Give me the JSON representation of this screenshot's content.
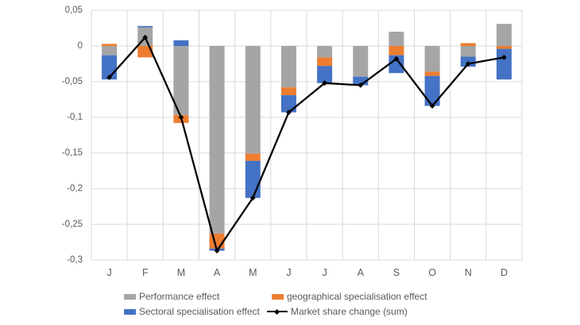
{
  "chart_data": {
    "type": "bar",
    "subtype": "stacked-column-with-line-overlay",
    "title": "",
    "xlabel": "",
    "ylabel": "",
    "categories": [
      "J",
      "F",
      "M",
      "A",
      "M",
      "J",
      "J",
      "A",
      "S",
      "O",
      "N",
      "D"
    ],
    "series": [
      {
        "name": "Performance effect",
        "type": "bar",
        "color": "#A5A5A5",
        "values": [
          -0.013,
          0.026,
          -0.097,
          -0.263,
          -0.151,
          -0.058,
          -0.016,
          -0.043,
          0.02,
          -0.036,
          -0.015,
          0.031
        ]
      },
      {
        "name": "geographical specialisation effect",
        "type": "bar",
        "color": "#ED7D31",
        "values": [
          0.003,
          -0.016,
          -0.011,
          -0.021,
          -0.01,
          -0.011,
          -0.012,
          0.0,
          -0.013,
          -0.006,
          0.004,
          -0.004
        ]
      },
      {
        "name": "Sectoral specialisation effect",
        "type": "bar",
        "color": "#4472C4",
        "values": [
          -0.034,
          0.002,
          0.008,
          -0.003,
          -0.052,
          -0.024,
          -0.024,
          -0.012,
          -0.025,
          -0.042,
          -0.014,
          -0.043
        ]
      },
      {
        "name": "Market share change (sum)",
        "type": "line",
        "color": "#000000",
        "values": [
          -0.044,
          0.012,
          -0.1,
          -0.287,
          -0.213,
          -0.093,
          -0.052,
          -0.055,
          -0.018,
          -0.084,
          -0.025,
          -0.016
        ]
      }
    ],
    "y_ticks": [
      {
        "value": 0.05,
        "label": "0,05"
      },
      {
        "value": 0,
        "label": "0"
      },
      {
        "value": -0.05,
        "label": "-0,05"
      },
      {
        "value": -0.1,
        "label": "-0,1"
      },
      {
        "value": -0.15,
        "label": "-0,15"
      },
      {
        "value": -0.2,
        "label": "-0,2"
      },
      {
        "value": -0.25,
        "label": "-0,25"
      },
      {
        "value": -0.3,
        "label": "-0,3"
      }
    ],
    "ylim": [
      -0.3,
      0.05
    ],
    "grid": true,
    "grid_color": "#D9D9D9",
    "axis_text_color": "#595959",
    "legend_position": "bottom"
  }
}
